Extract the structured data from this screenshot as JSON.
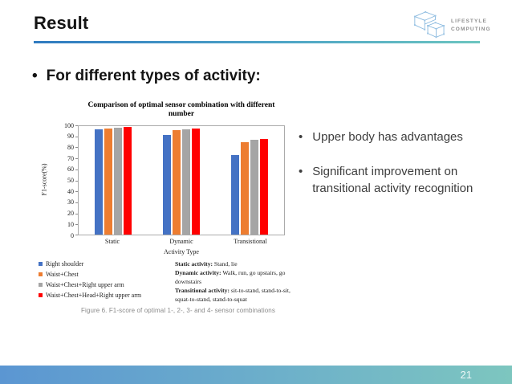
{
  "slide": {
    "title": "Result",
    "heading_bullet": "For different types of activity:",
    "page_number": "21",
    "logo": {
      "line1": "LIFESTYLE",
      "line2": "COMPUTING"
    },
    "side_bullets": [
      "Upper body has advantages",
      "Significant improvement on transitional activity recognition"
    ],
    "accent_colors": {
      "rule_gradient_start": "#2f7ac0",
      "rule_gradient_end": "#6cc5c0",
      "footer_gradient_start": "#5b96d2",
      "footer_gradient_end": "#7dc6bf"
    }
  },
  "chart_data": {
    "type": "bar",
    "title": "Comparison of optimal sensor combination with different number",
    "xlabel": "Activity Type",
    "ylabel": "F1-score(%)",
    "ylim": [
      0,
      100
    ],
    "ytick_step": 10,
    "grid": false,
    "legend_position": "bottom-left",
    "categories": [
      "Static",
      "Dynamic",
      "Transistional"
    ],
    "series": [
      {
        "name": "Right shoulder",
        "color": "#4472C4",
        "values": [
          97,
          92,
          73
        ]
      },
      {
        "name": "Waist+Chest",
        "color": "#ED7D31",
        "values": [
          98,
          96.5,
          85
        ]
      },
      {
        "name": "Waist+Chest+Right upper arm",
        "color": "#A5A5A5",
        "values": [
          98.5,
          97,
          87.5
        ]
      },
      {
        "name": "Waist+Chest+Head+Right upper arm",
        "color": "#FF0000",
        "values": [
          99,
          98,
          88.5
        ]
      }
    ]
  },
  "figure": {
    "caption": "Figure 6. F1-score of optimal 1-, 2-, 3- and 4- sensor combinations",
    "activity_notes": [
      {
        "label": "Static activity:",
        "text": " Stand, lie"
      },
      {
        "label": "Dynamic activity:",
        "text": " Walk, run, go upstairs, go downstairs"
      },
      {
        "label": "Transitional activity:",
        "text": " sit-to-stand, stand-to-sit, squat-to-stand, stand-to-squat"
      }
    ]
  }
}
